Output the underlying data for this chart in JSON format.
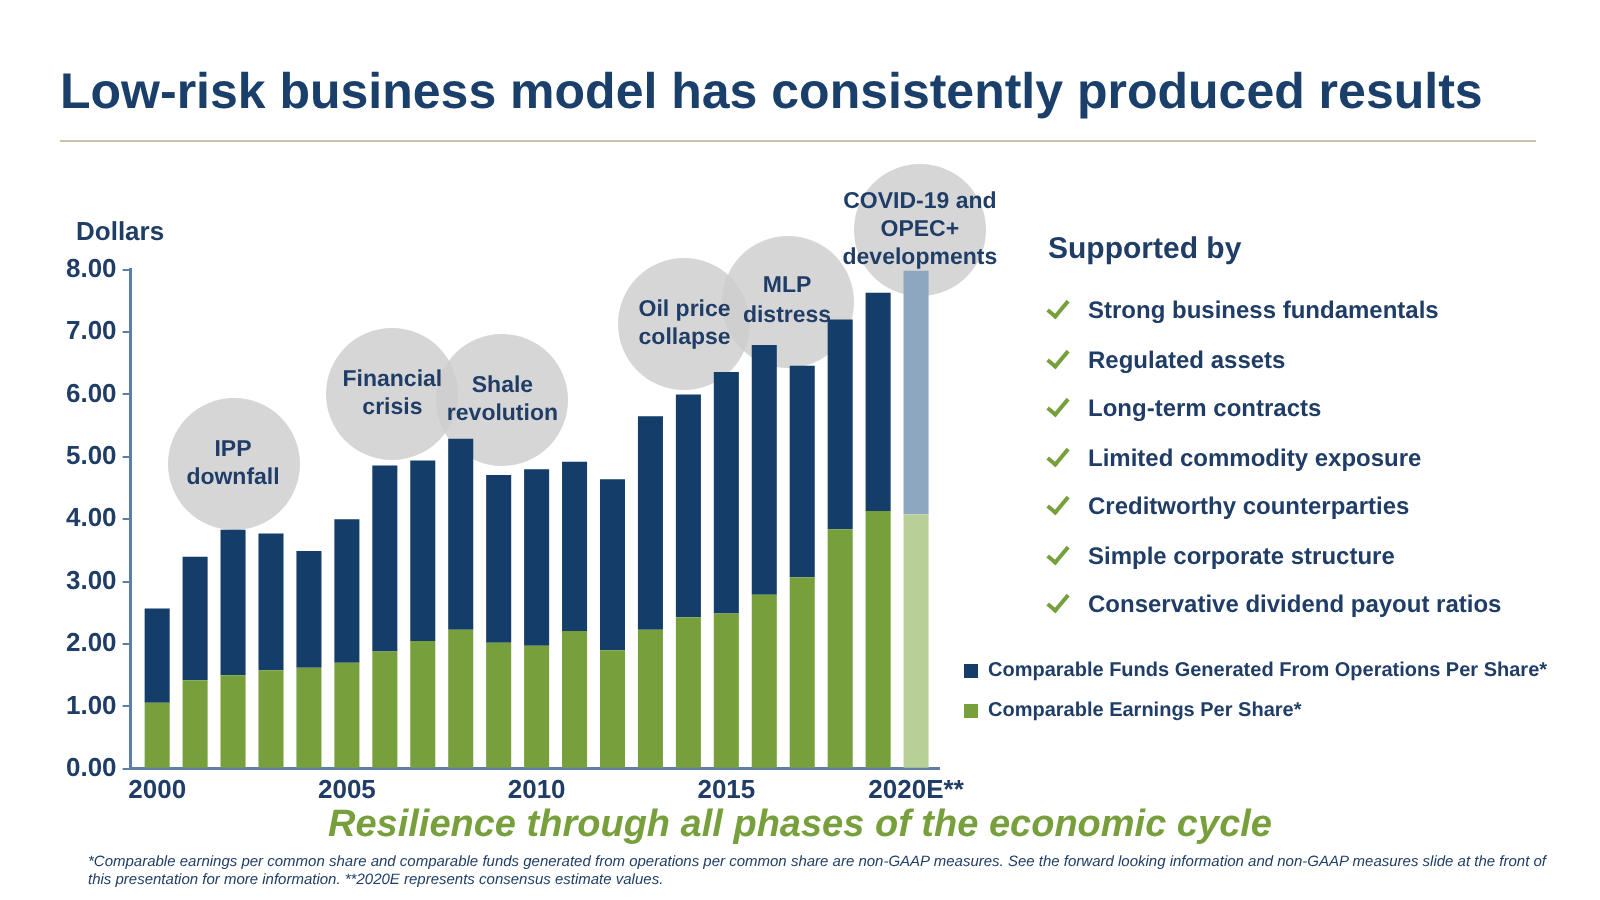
{
  "chart_data": [
    {
      "type": "bar",
      "title": "Low-risk business model has consistently produced results",
      "ylabel": "Dollars",
      "stacked": true,
      "x": [
        2000,
        2001,
        2002,
        2003,
        2004,
        2005,
        2006,
        2007,
        2008,
        2009,
        2010,
        2011,
        2012,
        2013,
        2014,
        2015,
        2016,
        2017,
        2018,
        2019,
        2020
      ],
      "series": [
        {
          "name": "Comparable Earnings Per Share*",
          "color": "#77a03c",
          "colors": [
            "#77a03c",
            "#77a03c",
            "#77a03c",
            "#77a03c",
            "#77a03c",
            "#77a03c",
            "#77a03c",
            "#77a03c",
            "#77a03c",
            "#77a03c",
            "#77a03c",
            "#77a03c",
            "#77a03c",
            "#77a03c",
            "#77a03c",
            "#77a03c",
            "#77a03c",
            "#77a03c",
            "#77a03c",
            "#77a03c",
            "#b9cf98"
          ],
          "values": [
            1.06,
            1.42,
            1.5,
            1.58,
            1.62,
            1.7,
            1.88,
            2.05,
            2.23,
            2.02,
            1.97,
            2.21,
            1.9,
            2.23,
            2.43,
            2.49,
            2.79,
            3.07,
            3.84,
            4.13,
            4.08
          ]
        },
        {
          "name": "Comparable Funds Generated From Operations Per Share*",
          "color": "#143e69",
          "colors": [
            "#143e69",
            "#143e69",
            "#143e69",
            "#143e69",
            "#143e69",
            "#143e69",
            "#143e69",
            "#143e69",
            "#143e69",
            "#143e69",
            "#143e69",
            "#143e69",
            "#143e69",
            "#143e69",
            "#143e69",
            "#143e69",
            "#143e69",
            "#143e69",
            "#143e69",
            "#143e69",
            "#8da7c1"
          ],
          "values": [
            1.51,
            1.98,
            2.33,
            2.19,
            1.87,
            2.3,
            2.98,
            2.89,
            3.06,
            2.69,
            2.83,
            2.71,
            2.74,
            3.42,
            3.57,
            3.87,
            4.0,
            3.39,
            3.36,
            3.5,
            3.9
          ]
        }
      ],
      "xlim": [
        1999.3,
        2020.6
      ],
      "xticks": [
        2000,
        2005,
        2010,
        2015,
        {
          "value": 2020,
          "label": "2020E**"
        }
      ],
      "ylim": [
        0,
        8
      ],
      "yticks": [
        {
          "value": 0,
          "label": "0.00"
        },
        {
          "value": 1,
          "label": "1.00"
        },
        {
          "value": 2,
          "label": "2.00"
        },
        {
          "value": 3,
          "label": "3.00"
        },
        {
          "value": 4,
          "label": "4.00"
        },
        {
          "value": 5,
          "label": "5.00"
        },
        {
          "value": 6,
          "label": "6.00"
        },
        {
          "value": 7,
          "label": "7.00"
        },
        {
          "value": 8,
          "label": "8.00"
        }
      ],
      "grid": false,
      "legend": "bottom right",
      "annotations": [
        {
          "text": "IPP downfall",
          "x": 2002,
          "y": 3.83
        },
        {
          "text": "Financial crisis",
          "x": 2006.2,
          "y": 4.95
        },
        {
          "text": "Shale revolution",
          "x": 2009.1,
          "y": 4.85
        },
        {
          "text": "Oil price collapse",
          "x": 2013.9,
          "y": 6.07
        },
        {
          "text": "MLP distress",
          "x": 2016.6,
          "y": 6.43
        },
        {
          "text": "COVID-19 and OPEC+ developments",
          "x": 2020.1,
          "y": 7.57
        },
        "Resilience through all phases of the economic cycle",
        "*Comparable earnings per common share and comparable funds generated from operations per common share are non-GAAP measures.  See the forward looking information and non-GAAP measures slide at the front of this presentation for more information. **2020E represents consensus estimate values."
      ]
    },
    {
      "type": "other",
      "title": "Supported by",
      "annotations": [
        "Strong business fundamentals",
        "Regulated assets",
        "Long-term contracts",
        "Limited commodity exposure",
        "Creditworthy counterparties",
        "Simple corporate structure",
        "Conservative dividend payout ratios"
      ]
    }
  ]
}
